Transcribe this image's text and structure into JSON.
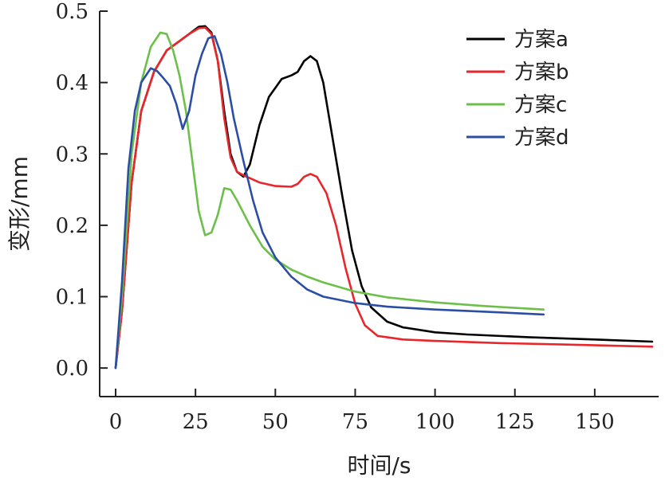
{
  "chart_data": {
    "type": "line",
    "title": "",
    "xlabel": "时间/s",
    "ylabel": "变形/mm",
    "xlim": [
      -5,
      170
    ],
    "ylim": [
      -0.04,
      0.5
    ],
    "xticks": [
      0,
      25,
      50,
      75,
      100,
      125,
      150
    ],
    "xtick_labels": [
      "0",
      "25",
      "50",
      "75",
      "100",
      "125",
      "150"
    ],
    "yticks": [
      0.0,
      0.1,
      0.2,
      0.3,
      0.4,
      0.5
    ],
    "ytick_labels": [
      "0.0",
      "0.1",
      "0.2",
      "0.3",
      "0.4",
      "0.5"
    ],
    "grid": false,
    "legend_position": "top-right",
    "series": [
      {
        "name": "方案a",
        "color": "#000000",
        "points": [
          [
            0,
            0.0
          ],
          [
            2,
            0.08
          ],
          [
            5,
            0.26
          ],
          [
            8,
            0.36
          ],
          [
            12,
            0.415
          ],
          [
            16,
            0.445
          ],
          [
            20,
            0.458
          ],
          [
            23,
            0.468
          ],
          [
            26,
            0.478
          ],
          [
            28,
            0.479
          ],
          [
            30,
            0.47
          ],
          [
            32,
            0.43
          ],
          [
            34,
            0.36
          ],
          [
            36,
            0.3
          ],
          [
            38,
            0.275
          ],
          [
            40,
            0.268
          ],
          [
            42,
            0.285
          ],
          [
            45,
            0.34
          ],
          [
            48,
            0.38
          ],
          [
            52,
            0.405
          ],
          [
            55,
            0.41
          ],
          [
            57,
            0.415
          ],
          [
            59,
            0.43
          ],
          [
            61,
            0.437
          ],
          [
            63,
            0.43
          ],
          [
            65,
            0.4
          ],
          [
            68,
            0.32
          ],
          [
            71,
            0.24
          ],
          [
            74,
            0.165
          ],
          [
            77,
            0.115
          ],
          [
            80,
            0.085
          ],
          [
            85,
            0.065
          ],
          [
            90,
            0.057
          ],
          [
            100,
            0.05
          ],
          [
            110,
            0.047
          ],
          [
            130,
            0.043
          ],
          [
            150,
            0.04
          ],
          [
            168,
            0.037
          ]
        ]
      },
      {
        "name": "方案b",
        "color": "#e8262b",
        "points": [
          [
            0,
            0.0
          ],
          [
            2,
            0.08
          ],
          [
            5,
            0.26
          ],
          [
            8,
            0.36
          ],
          [
            12,
            0.415
          ],
          [
            16,
            0.445
          ],
          [
            20,
            0.458
          ],
          [
            23,
            0.468
          ],
          [
            26,
            0.476
          ],
          [
            28,
            0.477
          ],
          [
            30,
            0.468
          ],
          [
            32,
            0.43
          ],
          [
            34,
            0.35
          ],
          [
            36,
            0.295
          ],
          [
            38,
            0.275
          ],
          [
            40,
            0.27
          ],
          [
            45,
            0.26
          ],
          [
            50,
            0.255
          ],
          [
            55,
            0.254
          ],
          [
            57,
            0.258
          ],
          [
            59,
            0.268
          ],
          [
            61,
            0.272
          ],
          [
            63,
            0.268
          ],
          [
            66,
            0.245
          ],
          [
            69,
            0.2
          ],
          [
            72,
            0.14
          ],
          [
            75,
            0.09
          ],
          [
            78,
            0.06
          ],
          [
            82,
            0.045
          ],
          [
            90,
            0.04
          ],
          [
            100,
            0.038
          ],
          [
            120,
            0.035
          ],
          [
            140,
            0.033
          ],
          [
            168,
            0.03
          ]
        ]
      },
      {
        "name": "方案c",
        "color": "#6cc04a",
        "points": [
          [
            0,
            0.0
          ],
          [
            2,
            0.1
          ],
          [
            5,
            0.3
          ],
          [
            8,
            0.4
          ],
          [
            11,
            0.45
          ],
          [
            14,
            0.47
          ],
          [
            16,
            0.468
          ],
          [
            18,
            0.445
          ],
          [
            20,
            0.41
          ],
          [
            22,
            0.36
          ],
          [
            24,
            0.29
          ],
          [
            26,
            0.22
          ],
          [
            28,
            0.186
          ],
          [
            30,
            0.19
          ],
          [
            32,
            0.215
          ],
          [
            34,
            0.252
          ],
          [
            36,
            0.25
          ],
          [
            38,
            0.235
          ],
          [
            42,
            0.2
          ],
          [
            46,
            0.17
          ],
          [
            50,
            0.152
          ],
          [
            55,
            0.138
          ],
          [
            60,
            0.128
          ],
          [
            65,
            0.12
          ],
          [
            75,
            0.107
          ],
          [
            85,
            0.099
          ],
          [
            100,
            0.092
          ],
          [
            115,
            0.087
          ],
          [
            134,
            0.082
          ]
        ]
      },
      {
        "name": "方案d",
        "color": "#2b4ea5",
        "points": [
          [
            0,
            0.0
          ],
          [
            2,
            0.12
          ],
          [
            4,
            0.28
          ],
          [
            6,
            0.36
          ],
          [
            8,
            0.4
          ],
          [
            11,
            0.42
          ],
          [
            13,
            0.416
          ],
          [
            15,
            0.406
          ],
          [
            17,
            0.395
          ],
          [
            19,
            0.37
          ],
          [
            21,
            0.335
          ],
          [
            23,
            0.36
          ],
          [
            25,
            0.41
          ],
          [
            27,
            0.44
          ],
          [
            29,
            0.462
          ],
          [
            31,
            0.465
          ],
          [
            33,
            0.44
          ],
          [
            35,
            0.4
          ],
          [
            37,
            0.35
          ],
          [
            40,
            0.29
          ],
          [
            43,
            0.235
          ],
          [
            46,
            0.19
          ],
          [
            50,
            0.155
          ],
          [
            55,
            0.128
          ],
          [
            60,
            0.11
          ],
          [
            65,
            0.1
          ],
          [
            75,
            0.091
          ],
          [
            85,
            0.086
          ],
          [
            100,
            0.082
          ],
          [
            115,
            0.079
          ],
          [
            134,
            0.075
          ]
        ]
      }
    ]
  }
}
